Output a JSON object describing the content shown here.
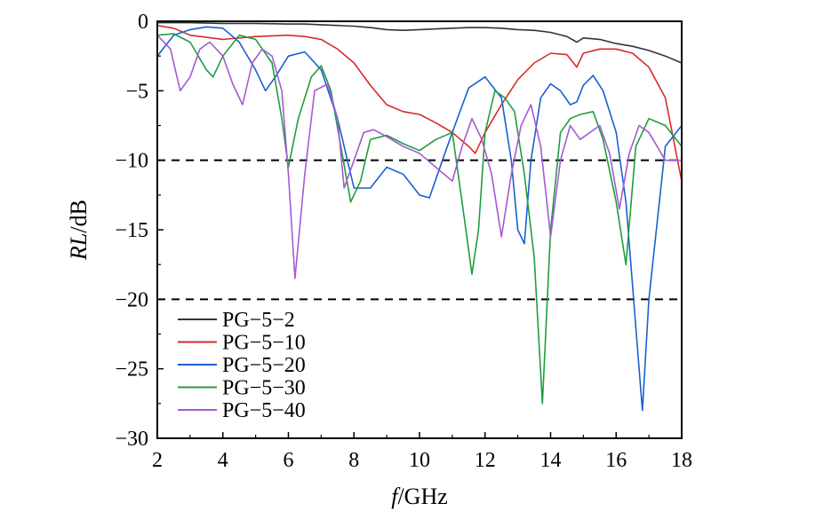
{
  "chart_data": {
    "type": "line",
    "xlabel_italic": "f",
    "xlabel_rest": "/GHz",
    "ylabel_italic": "RL",
    "ylabel_rest": "/dB",
    "xlim": [
      2,
      18
    ],
    "ylim": [
      -30,
      0
    ],
    "xticks": [
      2,
      4,
      6,
      8,
      10,
      12,
      14,
      16,
      18
    ],
    "yticks": [
      0,
      -5,
      -10,
      -15,
      -20,
      -25,
      -30
    ],
    "ytick_labels": [
      "0",
      "−5",
      "−10",
      "−15",
      "−20",
      "−25",
      "−30"
    ],
    "grid": false,
    "legend_position": "bottom-left",
    "reference_lines": [
      -10,
      -20
    ],
    "reference_line_color": "#000000",
    "series": [
      {
        "name": "PG−5−2",
        "color": "#333333",
        "x": [
          2,
          3,
          4,
          5,
          6,
          6.5,
          7,
          7.5,
          8,
          8.5,
          9,
          9.5,
          10,
          10.5,
          11,
          11.5,
          12,
          12.5,
          13,
          13.5,
          14,
          14.5,
          14.8,
          15,
          15.5,
          16,
          16.5,
          17,
          17.5,
          18
        ],
        "y": [
          -0.1,
          -0.1,
          -0.15,
          -0.15,
          -0.2,
          -0.2,
          -0.25,
          -0.3,
          -0.35,
          -0.45,
          -0.6,
          -0.65,
          -0.6,
          -0.55,
          -0.5,
          -0.45,
          -0.45,
          -0.5,
          -0.6,
          -0.65,
          -0.8,
          -1.1,
          -1.5,
          -1.2,
          -1.3,
          -1.6,
          -1.8,
          -2.1,
          -2.5,
          -3.0
        ]
      },
      {
        "name": "PG−5−10",
        "color": "#d62a2a",
        "x": [
          2,
          2.5,
          3,
          4,
          5,
          6,
          6.5,
          7,
          7.5,
          8,
          8.5,
          9,
          9.5,
          10,
          10.5,
          11,
          11.5,
          11.7,
          12,
          12.5,
          13,
          13.5,
          14,
          14.5,
          14.8,
          15,
          15.5,
          16,
          16.5,
          17,
          17.5,
          18
        ],
        "y": [
          -0.3,
          -0.5,
          -1.0,
          -1.3,
          -1.1,
          -1.0,
          -1.1,
          -1.3,
          -2.0,
          -3.0,
          -4.6,
          -6.0,
          -6.5,
          -6.7,
          -7.3,
          -8.0,
          -9.0,
          -9.5,
          -8.0,
          -6.0,
          -4.2,
          -3.0,
          -2.3,
          -2.4,
          -3.3,
          -2.3,
          -2.0,
          -2.0,
          -2.3,
          -3.3,
          -5.5,
          -11.5
        ]
      },
      {
        "name": "PG−5−20",
        "color": "#1a5fd1",
        "x": [
          2,
          2.5,
          3,
          3.5,
          4,
          4.5,
          5,
          5.3,
          5.6,
          6,
          6.5,
          7,
          7.5,
          8,
          8.5,
          9,
          9.5,
          10,
          10.3,
          10.7,
          11,
          11.5,
          12,
          12.5,
          12.8,
          13,
          13.2,
          13.4,
          13.7,
          14,
          14.3,
          14.6,
          14.8,
          15,
          15.3,
          15.6,
          16,
          16.3,
          16.6,
          16.8,
          17,
          17.5,
          18
        ],
        "y": [
          -2.5,
          -1.0,
          -0.6,
          -0.4,
          -0.5,
          -1.5,
          -3.5,
          -5.0,
          -4.0,
          -2.5,
          -2.2,
          -3.5,
          -7.0,
          -12.0,
          -12.0,
          -10.5,
          -11.0,
          -12.5,
          -12.7,
          -10.0,
          -8.0,
          -4.8,
          -4.0,
          -5.5,
          -10.0,
          -15.0,
          -16.0,
          -10.0,
          -5.5,
          -4.5,
          -5.0,
          -6.0,
          -5.8,
          -4.6,
          -3.9,
          -5.0,
          -8.0,
          -13.0,
          -22.0,
          -28.0,
          -20.0,
          -9.0,
          -7.5
        ]
      },
      {
        "name": "PG−5−30",
        "color": "#1f9e3d",
        "x": [
          2,
          2.5,
          3,
          3.5,
          3.7,
          4,
          4.5,
          5,
          5.5,
          5.8,
          6.0,
          6.3,
          6.7,
          7,
          7.3,
          7.6,
          7.9,
          8.2,
          8.5,
          9,
          9.5,
          10,
          10.5,
          11,
          11.3,
          11.6,
          11.8,
          12,
          12.3,
          12.6,
          12.9,
          13.2,
          13.5,
          13.75,
          14,
          14.3,
          14.6,
          14.9,
          15.3,
          15.6,
          16,
          16.3,
          16.6,
          17,
          17.5,
          18
        ],
        "y": [
          -1.0,
          -0.9,
          -1.5,
          -3.5,
          -4.0,
          -2.5,
          -1.0,
          -1.3,
          -3.0,
          -7.0,
          -10.5,
          -7.0,
          -4.0,
          -3.2,
          -5.0,
          -9.0,
          -13.0,
          -11.5,
          -8.5,
          -8.2,
          -8.8,
          -9.3,
          -8.5,
          -8.0,
          -13.0,
          -18.2,
          -15.0,
          -8.0,
          -5.0,
          -5.5,
          -6.5,
          -11.0,
          -17.0,
          -27.5,
          -15.0,
          -8.0,
          -7.0,
          -6.7,
          -6.5,
          -8.5,
          -13.0,
          -17.5,
          -9.0,
          -7.0,
          -7.5,
          -9.0
        ]
      },
      {
        "name": "PG−5−40",
        "color": "#a35bd1",
        "x": [
          2,
          2.4,
          2.7,
          3,
          3.3,
          3.6,
          4,
          4.3,
          4.6,
          4.9,
          5.2,
          5.5,
          5.8,
          6.0,
          6.2,
          6.5,
          6.8,
          7.2,
          7.5,
          7.7,
          8,
          8.3,
          8.6,
          9,
          9.5,
          10,
          10.5,
          11,
          11.3,
          11.6,
          11.9,
          12.2,
          12.5,
          12.8,
          13.1,
          13.4,
          13.7,
          14,
          14.3,
          14.6,
          14.9,
          15.2,
          15.5,
          15.8,
          16.1,
          16.4,
          16.7,
          17,
          17.5,
          18
        ],
        "y": [
          -1.0,
          -2.0,
          -5.0,
          -4.0,
          -2.0,
          -1.5,
          -2.5,
          -4.5,
          -6.0,
          -3.0,
          -2.0,
          -2.5,
          -5.0,
          -11.0,
          -18.5,
          -11.0,
          -5.0,
          -4.5,
          -7.0,
          -12.0,
          -10.0,
          -8.0,
          -7.8,
          -8.3,
          -9.0,
          -9.5,
          -10.5,
          -11.5,
          -9.0,
          -7.0,
          -8.5,
          -11.0,
          -15.5,
          -11.0,
          -7.5,
          -6.0,
          -9.0,
          -15.5,
          -10.0,
          -7.5,
          -8.5,
          -8.0,
          -7.5,
          -9.5,
          -13.5,
          -9.5,
          -7.5,
          -8.0,
          -10.0,
          -10.0
        ]
      }
    ]
  }
}
